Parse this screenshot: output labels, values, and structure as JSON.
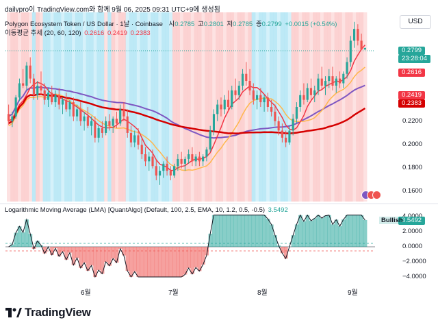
{
  "header": {
    "attribution": "dailypro이 TradingView.com와 함께 9월 06, 2025 09:31 UTC+9에 생성됨"
  },
  "legend": {
    "symbol": "Polygon Ecosystem Token / US Dollar · 1날 · Coinbase",
    "open_label": "시",
    "open": "0.2785",
    "high_label": "고",
    "high": "0.2801",
    "low_label": "저",
    "low": "0.2785",
    "close_label": "종",
    "close": "0.2799",
    "change": "+0.0015 (+0.54%)",
    "ma_title": "이동평균 추세 (20, 60, 120)",
    "ma_values": [
      "0.2616",
      "0.2419",
      "0.2383"
    ],
    "lma_title": "Logarithmic Moving Average (LMA) [QuantAlgo] (Default, 100, 2.5, EMA, 10, 1.2, 0.5, -0.5)",
    "lma_value": "3.5492"
  },
  "price_axis": {
    "currency": "USD",
    "labels": [
      "0.2200",
      "0.2000",
      "0.1800",
      "0.1600"
    ],
    "last_price": "0.2799",
    "countdown": "23:28:04",
    "ma_tags": [
      "0.2616",
      "0.2419",
      "0.2383"
    ]
  },
  "lma_axis": {
    "labels": [
      "4.0000",
      "2.0000",
      "0.0000",
      "−2.0000",
      "−4.0000"
    ],
    "value": "3.5492",
    "signal": "Bullish"
  },
  "time_axis": {
    "labels": [
      "6월",
      "7월",
      "8월",
      "9월"
    ]
  },
  "footer": {
    "brand": "TradingView"
  },
  "colors": {
    "up": "#26a69a",
    "down": "#ef5350",
    "ma20": "#f23645",
    "ma60": "#ffb74d",
    "ma120": "#7e57c2",
    "ma_long": "#d50000",
    "bull_bg": "#b2e5f5",
    "bear_bg": "#fbcaca",
    "last": "#26a69a"
  },
  "chart_data": {
    "type": "candlestick",
    "timeframe": "1D",
    "ylim": [
      0.15,
      0.31
    ],
    "candles": [
      [
        0.224,
        0.232,
        0.215,
        0.218
      ],
      [
        0.218,
        0.226,
        0.213,
        0.222
      ],
      [
        0.222,
        0.24,
        0.22,
        0.238
      ],
      [
        0.238,
        0.254,
        0.235,
        0.25
      ],
      [
        0.25,
        0.262,
        0.246,
        0.248
      ],
      [
        0.248,
        0.268,
        0.244,
        0.265
      ],
      [
        0.265,
        0.272,
        0.25,
        0.254
      ],
      [
        0.254,
        0.258,
        0.236,
        0.24
      ],
      [
        0.24,
        0.252,
        0.236,
        0.248
      ],
      [
        0.248,
        0.26,
        0.24,
        0.244
      ],
      [
        0.244,
        0.25,
        0.232,
        0.236
      ],
      [
        0.236,
        0.246,
        0.23,
        0.242
      ],
      [
        0.242,
        0.248,
        0.232,
        0.234
      ],
      [
        0.234,
        0.244,
        0.23,
        0.24
      ],
      [
        0.24,
        0.246,
        0.228,
        0.232
      ],
      [
        0.232,
        0.238,
        0.224,
        0.236
      ],
      [
        0.236,
        0.242,
        0.226,
        0.228
      ],
      [
        0.228,
        0.236,
        0.222,
        0.234
      ],
      [
        0.234,
        0.238,
        0.218,
        0.222
      ],
      [
        0.222,
        0.232,
        0.218,
        0.228
      ],
      [
        0.228,
        0.234,
        0.214,
        0.218
      ],
      [
        0.218,
        0.226,
        0.21,
        0.222
      ],
      [
        0.222,
        0.23,
        0.212,
        0.214
      ],
      [
        0.214,
        0.222,
        0.206,
        0.218
      ],
      [
        0.218,
        0.222,
        0.2,
        0.204
      ],
      [
        0.204,
        0.214,
        0.2,
        0.212
      ],
      [
        0.212,
        0.218,
        0.204,
        0.208
      ],
      [
        0.208,
        0.222,
        0.206,
        0.218
      ],
      [
        0.218,
        0.224,
        0.21,
        0.214
      ],
      [
        0.214,
        0.222,
        0.208,
        0.22
      ],
      [
        0.22,
        0.226,
        0.212,
        0.216
      ],
      [
        0.216,
        0.232,
        0.214,
        0.228
      ],
      [
        0.228,
        0.234,
        0.218,
        0.222
      ],
      [
        0.222,
        0.228,
        0.204,
        0.208
      ],
      [
        0.208,
        0.214,
        0.196,
        0.2
      ],
      [
        0.2,
        0.21,
        0.196,
        0.206
      ],
      [
        0.206,
        0.212,
        0.194,
        0.198
      ],
      [
        0.198,
        0.204,
        0.186,
        0.19
      ],
      [
        0.19,
        0.196,
        0.18,
        0.184
      ],
      [
        0.184,
        0.192,
        0.176,
        0.188
      ],
      [
        0.188,
        0.194,
        0.178,
        0.18
      ],
      [
        0.18,
        0.186,
        0.168,
        0.172
      ],
      [
        0.172,
        0.18,
        0.164,
        0.176
      ],
      [
        0.176,
        0.184,
        0.17,
        0.182
      ],
      [
        0.182,
        0.188,
        0.172,
        0.176
      ],
      [
        0.176,
        0.18,
        0.168,
        0.172
      ],
      [
        0.172,
        0.182,
        0.17,
        0.18
      ],
      [
        0.18,
        0.19,
        0.176,
        0.186
      ],
      [
        0.186,
        0.192,
        0.178,
        0.182
      ],
      [
        0.182,
        0.188,
        0.176,
        0.186
      ],
      [
        0.186,
        0.194,
        0.182,
        0.19
      ],
      [
        0.19,
        0.196,
        0.18,
        0.184
      ],
      [
        0.184,
        0.19,
        0.18,
        0.188
      ],
      [
        0.188,
        0.192,
        0.18,
        0.184
      ],
      [
        0.184,
        0.19,
        0.18,
        0.188
      ],
      [
        0.188,
        0.196,
        0.184,
        0.194
      ],
      [
        0.194,
        0.214,
        0.192,
        0.21
      ],
      [
        0.21,
        0.228,
        0.206,
        0.224
      ],
      [
        0.224,
        0.236,
        0.218,
        0.232
      ],
      [
        0.232,
        0.238,
        0.222,
        0.228
      ],
      [
        0.228,
        0.24,
        0.224,
        0.236
      ],
      [
        0.236,
        0.244,
        0.226,
        0.23
      ],
      [
        0.23,
        0.248,
        0.228,
        0.244
      ],
      [
        0.244,
        0.254,
        0.236,
        0.24
      ],
      [
        0.24,
        0.252,
        0.236,
        0.248
      ],
      [
        0.248,
        0.262,
        0.244,
        0.258
      ],
      [
        0.258,
        0.268,
        0.248,
        0.252
      ],
      [
        0.252,
        0.262,
        0.24,
        0.244
      ],
      [
        0.244,
        0.25,
        0.232,
        0.236
      ],
      [
        0.236,
        0.244,
        0.228,
        0.24
      ],
      [
        0.24,
        0.246,
        0.23,
        0.234
      ],
      [
        0.234,
        0.24,
        0.226,
        0.238
      ],
      [
        0.238,
        0.242,
        0.226,
        0.23
      ],
      [
        0.23,
        0.236,
        0.222,
        0.226
      ],
      [
        0.226,
        0.232,
        0.214,
        0.218
      ],
      [
        0.218,
        0.222,
        0.206,
        0.21
      ],
      [
        0.21,
        0.216,
        0.2,
        0.204
      ],
      [
        0.204,
        0.21,
        0.196,
        0.2
      ],
      [
        0.2,
        0.214,
        0.198,
        0.21
      ],
      [
        0.21,
        0.224,
        0.206,
        0.22
      ],
      [
        0.22,
        0.234,
        0.216,
        0.23
      ],
      [
        0.23,
        0.244,
        0.226,
        0.24
      ],
      [
        0.24,
        0.25,
        0.232,
        0.236
      ],
      [
        0.236,
        0.25,
        0.234,
        0.246
      ],
      [
        0.246,
        0.254,
        0.236,
        0.24
      ],
      [
        0.24,
        0.248,
        0.234,
        0.244
      ],
      [
        0.244,
        0.258,
        0.24,
        0.254
      ],
      [
        0.254,
        0.264,
        0.244,
        0.248
      ],
      [
        0.248,
        0.256,
        0.24,
        0.252
      ],
      [
        0.252,
        0.262,
        0.246,
        0.256
      ],
      [
        0.256,
        0.264,
        0.244,
        0.248
      ],
      [
        0.248,
        0.256,
        0.242,
        0.254
      ],
      [
        0.254,
        0.26,
        0.246,
        0.25
      ],
      [
        0.25,
        0.26,
        0.246,
        0.258
      ],
      [
        0.258,
        0.272,
        0.254,
        0.268
      ],
      [
        0.268,
        0.29,
        0.264,
        0.286
      ],
      [
        0.286,
        0.302,
        0.28,
        0.296
      ],
      [
        0.296,
        0.3,
        0.282,
        0.286
      ],
      [
        0.286,
        0.292,
        0.278,
        0.2785
      ],
      [
        0.2785,
        0.2801,
        0.2785,
        0.2799
      ]
    ],
    "ma_last": {
      "ma20": 0.2616,
      "ma60": 0.2419,
      "ma120": 0.2383
    },
    "lma_series_end": 3.5492
  }
}
